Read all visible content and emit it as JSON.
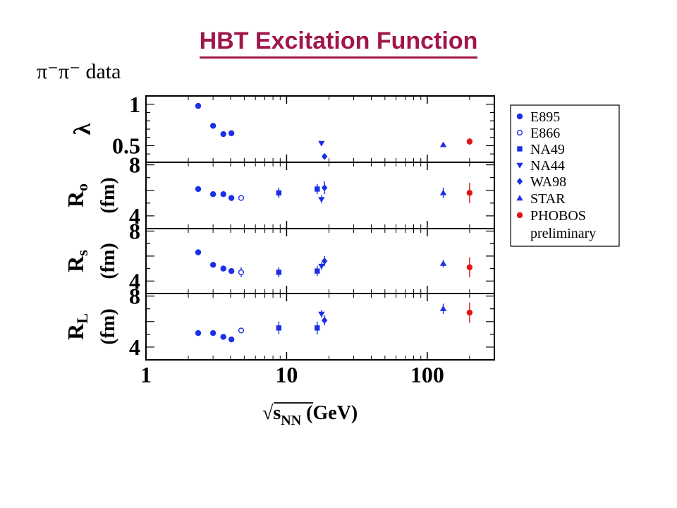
{
  "slide": {
    "title": "HBT Excitation Function",
    "subtitle": "π⁻π⁻ data"
  },
  "colors": {
    "blue": "#1b2fe6",
    "red": "#e01515",
    "title": "#a1164a"
  },
  "chart_data": {
    "type": "scatter",
    "x_scale": "log",
    "xlim": [
      1,
      300
    ],
    "x_ticks": [
      "1",
      "10",
      "100"
    ],
    "xlabel": {
      "root": "√s",
      "subscript": "NN",
      "unit": "(GeV)"
    },
    "legend_position": "right",
    "legend": [
      {
        "label": "E895",
        "marker": "circle",
        "color": "blue"
      },
      {
        "label": "E866",
        "marker": "open-circle",
        "color": "blue"
      },
      {
        "label": "NA49",
        "marker": "square",
        "color": "blue"
      },
      {
        "label": "NA44",
        "marker": "triangle-down",
        "color": "blue"
      },
      {
        "label": "WA98",
        "marker": "diamond",
        "color": "blue"
      },
      {
        "label": "STAR",
        "marker": "triangle-up",
        "color": "blue"
      },
      {
        "label": "PHOBOS",
        "label2": "preliminary",
        "marker": "circle",
        "color": "red"
      }
    ],
    "panels": [
      {
        "id": "lambda",
        "ylabel": "λ",
        "ylim": [
          0.3,
          1.1
        ],
        "y_ticks": [
          {
            "v": 1,
            "t": "1"
          },
          {
            "v": 0.5,
            "t": "0.5"
          }
        ],
        "points": [
          {
            "series": "E895",
            "x": 2.35,
            "y": 0.98,
            "err": 0.02
          },
          {
            "series": "E895",
            "x": 3.0,
            "y": 0.74,
            "err": 0.02
          },
          {
            "series": "E895",
            "x": 3.55,
            "y": 0.64,
            "err": 0.02
          },
          {
            "series": "E895",
            "x": 4.05,
            "y": 0.65,
            "err": 0.02
          },
          {
            "series": "NA44",
            "x": 17.7,
            "y": 0.53,
            "err": 0.02
          },
          {
            "series": "WA98",
            "x": 18.6,
            "y": 0.37,
            "err": 0.02
          },
          {
            "series": "STAR",
            "x": 130,
            "y": 0.51,
            "err": 0.02
          },
          {
            "series": "PHOBOS",
            "x": 200,
            "y": 0.55,
            "err": 0.04
          }
        ]
      },
      {
        "id": "Ro",
        "ylabel": "R",
        "ylabel_sub": "o",
        "ylabel_unit": "(fm)",
        "ylim": [
          3,
          8.2
        ],
        "y_ticks": [
          {
            "v": 8,
            "t": "8"
          },
          {
            "v": 4,
            "t": "4"
          }
        ],
        "points": [
          {
            "series": "E895",
            "x": 2.35,
            "y": 6.1,
            "err": 0.15
          },
          {
            "series": "E895",
            "x": 3.0,
            "y": 5.7,
            "err": 0.15
          },
          {
            "series": "E895",
            "x": 3.55,
            "y": 5.7,
            "err": 0.15
          },
          {
            "series": "E895",
            "x": 4.05,
            "y": 5.4,
            "err": 0.15
          },
          {
            "series": "E866",
            "x": 4.75,
            "y": 5.4,
            "err": 0.2
          },
          {
            "series": "NA49",
            "x": 8.8,
            "y": 5.8,
            "err": 0.4
          },
          {
            "series": "NA49",
            "x": 16.5,
            "y": 6.1,
            "err": 0.4
          },
          {
            "series": "NA44",
            "x": 17.7,
            "y": 5.3,
            "err": 0.3
          },
          {
            "series": "WA98",
            "x": 18.6,
            "y": 6.2,
            "err": 0.5
          },
          {
            "series": "STAR",
            "x": 130,
            "y": 5.8,
            "err": 0.4
          },
          {
            "series": "PHOBOS",
            "x": 200,
            "y": 5.8,
            "err": 0.8
          }
        ]
      },
      {
        "id": "Rs",
        "ylabel": "R",
        "ylabel_sub": "s",
        "ylabel_unit": "(fm)",
        "ylim": [
          3,
          8.2
        ],
        "y_ticks": [
          {
            "v": 8,
            "t": "8"
          },
          {
            "v": 4,
            "t": "4"
          }
        ],
        "points": [
          {
            "series": "E895",
            "x": 2.35,
            "y": 6.3,
            "err": 0.15
          },
          {
            "series": "E895",
            "x": 3.0,
            "y": 5.3,
            "err": 0.15
          },
          {
            "series": "E895",
            "x": 3.55,
            "y": 5.0,
            "err": 0.15
          },
          {
            "series": "E895",
            "x": 4.05,
            "y": 4.8,
            "err": 0.15
          },
          {
            "series": "E866",
            "x": 4.75,
            "y": 4.7,
            "err": 0.4
          },
          {
            "series": "NA49",
            "x": 8.8,
            "y": 4.7,
            "err": 0.4
          },
          {
            "series": "NA49",
            "x": 16.5,
            "y": 4.8,
            "err": 0.4
          },
          {
            "series": "NA44",
            "x": 17.7,
            "y": 5.2,
            "err": 0.3
          },
          {
            "series": "WA98",
            "x": 18.6,
            "y": 5.6,
            "err": 0.4
          },
          {
            "series": "STAR",
            "x": 130,
            "y": 5.4,
            "err": 0.3
          },
          {
            "series": "PHOBOS",
            "x": 200,
            "y": 5.1,
            "err": 0.8
          }
        ]
      },
      {
        "id": "RL",
        "ylabel": "R",
        "ylabel_sub": "L",
        "ylabel_unit": "(fm)",
        "ylim": [
          3,
          8.2
        ],
        "y_ticks": [
          {
            "v": 8,
            "t": "8"
          },
          {
            "v": 4,
            "t": "4"
          }
        ],
        "points": [
          {
            "series": "E895",
            "x": 2.35,
            "y": 5.1,
            "err": 0.1
          },
          {
            "series": "E895",
            "x": 3.0,
            "y": 5.1,
            "err": 0.1
          },
          {
            "series": "E895",
            "x": 3.55,
            "y": 4.8,
            "err": 0.1
          },
          {
            "series": "E895",
            "x": 4.05,
            "y": 4.6,
            "err": 0.1
          },
          {
            "series": "E866",
            "x": 4.75,
            "y": 5.3,
            "err": 0.2
          },
          {
            "series": "NA49",
            "x": 8.8,
            "y": 5.5,
            "err": 0.5
          },
          {
            "series": "NA49",
            "x": 16.5,
            "y": 5.5,
            "err": 0.5
          },
          {
            "series": "NA44",
            "x": 17.7,
            "y": 6.6,
            "err": 0.3
          },
          {
            "series": "WA98",
            "x": 18.6,
            "y": 6.1,
            "err": 0.4
          },
          {
            "series": "STAR",
            "x": 130,
            "y": 7.0,
            "err": 0.4
          },
          {
            "series": "PHOBOS",
            "x": 200,
            "y": 6.7,
            "err": 0.8
          }
        ]
      }
    ]
  }
}
